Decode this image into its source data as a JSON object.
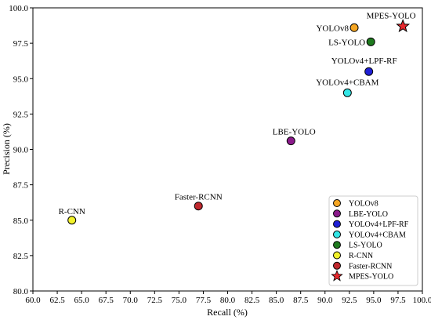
{
  "chart_data": {
    "type": "scatter",
    "xlabel": "Recall (%)",
    "ylabel": "Precision (%)",
    "xlim": [
      60.0,
      100.0
    ],
    "ylim": [
      80.0,
      100.0
    ],
    "xticks": [
      "60.0",
      "62.5",
      "65.0",
      "67.5",
      "70.0",
      "72.5",
      "75.0",
      "77.5",
      "80.0",
      "82.5",
      "85.0",
      "87.5",
      "90.0",
      "92.5",
      "95.0",
      "97.5",
      "100.0"
    ],
    "yticks": [
      "80.0",
      "82.5",
      "85.0",
      "87.5",
      "90.0",
      "92.5",
      "95.0",
      "97.5",
      "100.0"
    ],
    "grid": false,
    "legend_position": "bottom-right",
    "series": [
      {
        "name": "YOLOv8",
        "x": 93.0,
        "y": 98.6,
        "color": "#f5a623",
        "marker": "circle"
      },
      {
        "name": "LBE-YOLO",
        "x": 86.5,
        "y": 90.6,
        "color": "#8b1a8b",
        "marker": "circle"
      },
      {
        "name": "YOLOv4+LPF-RF",
        "x": 94.5,
        "y": 95.5,
        "color": "#1f1fd6",
        "marker": "circle"
      },
      {
        "name": "YOLOv4+CBAM",
        "x": 92.3,
        "y": 94.0,
        "color": "#33e6e6",
        "marker": "circle"
      },
      {
        "name": "LS-YOLO",
        "x": 94.7,
        "y": 97.6,
        "color": "#1e7a1e",
        "marker": "circle"
      },
      {
        "name": "R-CNN",
        "x": 64.0,
        "y": 85.0,
        "color": "#f2f22a",
        "marker": "circle"
      },
      {
        "name": "Faster-RCNN",
        "x": 77.0,
        "y": 86.0,
        "color": "#c0282d",
        "marker": "circle"
      },
      {
        "name": "MPES-YOLO",
        "x": 98.0,
        "y": 98.7,
        "color": "#e8282d",
        "marker": "star"
      }
    ]
  }
}
